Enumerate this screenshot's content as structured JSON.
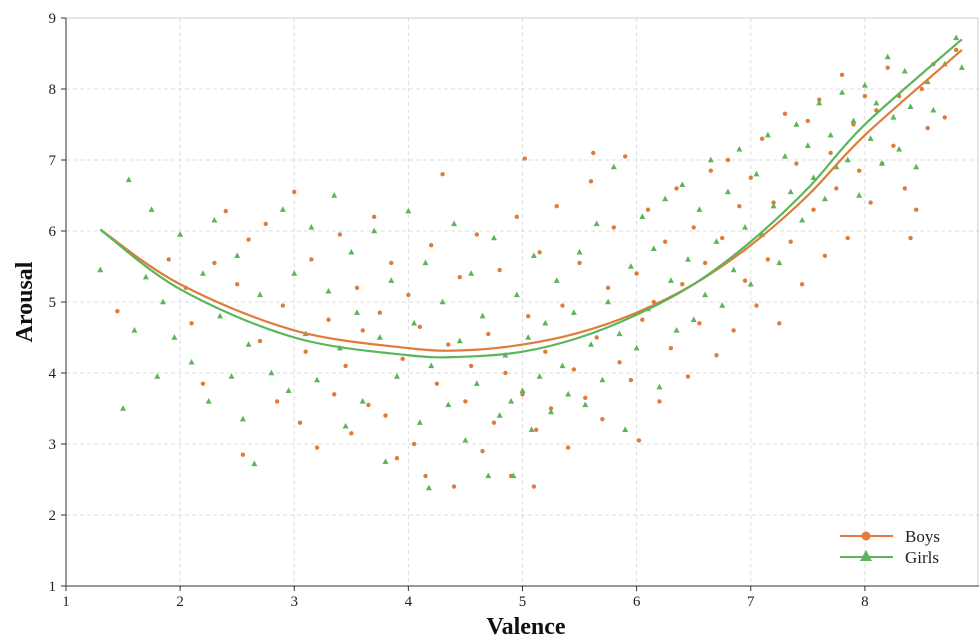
{
  "chart_data": {
    "type": "scatter",
    "xlabel": "Valence",
    "ylabel": "Arousal",
    "xlim": [
      1,
      9
    ],
    "ylim": [
      1,
      9
    ],
    "x_ticks": [
      "1",
      "2",
      "3",
      "4",
      "5",
      "6",
      "7",
      "8"
    ],
    "y_ticks": [
      "1",
      "2",
      "3",
      "4",
      "5",
      "6",
      "7",
      "8",
      "9"
    ],
    "grid": true,
    "legend_position": "bottom-right",
    "series": [
      {
        "name": "Boys",
        "color": "#E07B39",
        "marker": "circle",
        "fit_curve": {
          "x": [
            1.3,
            2,
            3,
            4,
            4.5,
            5,
            5.5,
            6,
            6.5,
            7,
            7.5,
            8,
            8.85
          ],
          "y": [
            6.02,
            5.25,
            4.6,
            4.35,
            4.32,
            4.4,
            4.57,
            4.85,
            5.25,
            5.8,
            6.5,
            7.35,
            8.55
          ]
        },
        "points": [
          [
            1.45,
            4.87
          ],
          [
            1.9,
            5.6
          ],
          [
            2.05,
            5.2
          ],
          [
            2.1,
            4.7
          ],
          [
            2.2,
            3.85
          ],
          [
            2.3,
            5.55
          ],
          [
            2.4,
            6.28
          ],
          [
            2.5,
            5.25
          ],
          [
            2.55,
            2.85
          ],
          [
            2.6,
            5.88
          ],
          [
            2.7,
            4.45
          ],
          [
            2.75,
            6.1
          ],
          [
            2.85,
            3.6
          ],
          [
            2.9,
            4.95
          ],
          [
            3.0,
            6.55
          ],
          [
            3.05,
            3.3
          ],
          [
            3.1,
            4.3
          ],
          [
            3.15,
            5.6
          ],
          [
            3.2,
            2.95
          ],
          [
            3.3,
            4.75
          ],
          [
            3.35,
            3.7
          ],
          [
            3.4,
            5.95
          ],
          [
            3.45,
            4.1
          ],
          [
            3.5,
            3.15
          ],
          [
            3.55,
            5.2
          ],
          [
            3.6,
            4.6
          ],
          [
            3.65,
            3.55
          ],
          [
            3.7,
            6.2
          ],
          [
            3.75,
            4.85
          ],
          [
            3.8,
            3.4
          ],
          [
            3.85,
            5.55
          ],
          [
            3.9,
            2.8
          ],
          [
            3.95,
            4.2
          ],
          [
            4.0,
            5.1
          ],
          [
            4.05,
            3.0
          ],
          [
            4.1,
            4.65
          ],
          [
            4.15,
            2.55
          ],
          [
            4.2,
            5.8
          ],
          [
            4.25,
            3.85
          ],
          [
            4.3,
            6.8
          ],
          [
            4.35,
            4.4
          ],
          [
            4.4,
            2.4
          ],
          [
            4.45,
            5.35
          ],
          [
            4.5,
            3.6
          ],
          [
            4.55,
            4.1
          ],
          [
            4.6,
            5.95
          ],
          [
            4.65,
            2.9
          ],
          [
            4.7,
            4.55
          ],
          [
            4.75,
            3.3
          ],
          [
            4.8,
            5.45
          ],
          [
            4.85,
            4.0
          ],
          [
            4.9,
            2.55
          ],
          [
            4.95,
            6.2
          ],
          [
            5.0,
            3.7
          ],
          [
            5.02,
            7.02
          ],
          [
            5.05,
            4.8
          ],
          [
            5.1,
            2.4
          ],
          [
            5.12,
            3.2
          ],
          [
            5.15,
            5.7
          ],
          [
            5.2,
            4.3
          ],
          [
            5.25,
            3.5
          ],
          [
            5.3,
            6.35
          ],
          [
            5.35,
            4.95
          ],
          [
            5.4,
            2.95
          ],
          [
            5.45,
            4.05
          ],
          [
            5.5,
            5.55
          ],
          [
            5.55,
            3.65
          ],
          [
            5.6,
            6.7
          ],
          [
            5.62,
            7.1
          ],
          [
            5.65,
            4.5
          ],
          [
            5.7,
            3.35
          ],
          [
            5.75,
            5.2
          ],
          [
            5.8,
            6.05
          ],
          [
            5.85,
            4.15
          ],
          [
            5.9,
            7.05
          ],
          [
            5.95,
            3.9
          ],
          [
            6.0,
            5.4
          ],
          [
            6.02,
            3.05
          ],
          [
            6.05,
            4.75
          ],
          [
            6.1,
            6.3
          ],
          [
            6.15,
            5.0
          ],
          [
            6.2,
            3.6
          ],
          [
            6.25,
            5.85
          ],
          [
            6.3,
            4.35
          ],
          [
            6.35,
            6.6
          ],
          [
            6.4,
            5.25
          ],
          [
            6.45,
            3.95
          ],
          [
            6.5,
            6.05
          ],
          [
            6.55,
            4.7
          ],
          [
            6.6,
            5.55
          ],
          [
            6.65,
            6.85
          ],
          [
            6.7,
            4.25
          ],
          [
            6.75,
            5.9
          ],
          [
            6.8,
            7.0
          ],
          [
            6.85,
            4.6
          ],
          [
            6.9,
            6.35
          ],
          [
            6.95,
            5.3
          ],
          [
            7.0,
            6.75
          ],
          [
            7.05,
            4.95
          ],
          [
            7.1,
            7.3
          ],
          [
            7.15,
            5.6
          ],
          [
            7.2,
            6.4
          ],
          [
            7.25,
            4.7
          ],
          [
            7.3,
            7.65
          ],
          [
            7.35,
            5.85
          ],
          [
            7.4,
            6.95
          ],
          [
            7.45,
            5.25
          ],
          [
            7.5,
            7.55
          ],
          [
            7.55,
            6.3
          ],
          [
            7.6,
            7.85
          ],
          [
            7.65,
            5.65
          ],
          [
            7.7,
            7.1
          ],
          [
            7.75,
            6.6
          ],
          [
            7.8,
            8.2
          ],
          [
            7.85,
            5.9
          ],
          [
            7.9,
            7.5
          ],
          [
            7.95,
            6.85
          ],
          [
            8.0,
            7.9
          ],
          [
            8.05,
            6.4
          ],
          [
            8.1,
            7.7
          ],
          [
            8.15,
            6.95
          ],
          [
            8.2,
            8.3
          ],
          [
            8.25,
            7.2
          ],
          [
            8.3,
            7.9
          ],
          [
            8.35,
            6.6
          ],
          [
            8.4,
            5.9
          ],
          [
            8.45,
            6.3
          ],
          [
            8.5,
            8.0
          ],
          [
            8.55,
            7.45
          ],
          [
            8.6,
            8.35
          ],
          [
            8.7,
            7.6
          ],
          [
            8.8,
            8.55
          ]
        ]
      },
      {
        "name": "Girls",
        "color": "#5BB55B",
        "marker": "triangle",
        "fit_curve": {
          "x": [
            1.3,
            2,
            3,
            4,
            4.5,
            5,
            5.5,
            6,
            6.5,
            7,
            7.5,
            8,
            8.85
          ],
          "y": [
            6.02,
            5.18,
            4.5,
            4.25,
            4.23,
            4.3,
            4.5,
            4.82,
            5.25,
            5.85,
            6.6,
            7.5,
            8.7
          ]
        },
        "points": [
          [
            1.3,
            5.45
          ],
          [
            1.5,
            3.5
          ],
          [
            1.55,
            6.72
          ],
          [
            1.6,
            4.6
          ],
          [
            1.7,
            5.35
          ],
          [
            1.75,
            6.3
          ],
          [
            1.8,
            3.95
          ],
          [
            1.85,
            5.0
          ],
          [
            1.95,
            4.5
          ],
          [
            2.0,
            5.95
          ],
          [
            2.1,
            4.15
          ],
          [
            2.2,
            5.4
          ],
          [
            2.25,
            3.6
          ],
          [
            2.3,
            6.15
          ],
          [
            2.35,
            4.8
          ],
          [
            2.45,
            3.95
          ],
          [
            2.5,
            5.65
          ],
          [
            2.55,
            3.35
          ],
          [
            2.6,
            4.4
          ],
          [
            2.65,
            2.72
          ],
          [
            2.7,
            5.1
          ],
          [
            2.8,
            4.0
          ],
          [
            2.9,
            6.3
          ],
          [
            2.95,
            3.75
          ],
          [
            3.0,
            5.4
          ],
          [
            3.1,
            4.55
          ],
          [
            3.15,
            6.05
          ],
          [
            3.2,
            3.9
          ],
          [
            3.3,
            5.15
          ],
          [
            3.35,
            6.5
          ],
          [
            3.4,
            4.35
          ],
          [
            3.45,
            3.25
          ],
          [
            3.5,
            5.7
          ],
          [
            3.55,
            4.85
          ],
          [
            3.6,
            3.6
          ],
          [
            3.7,
            6.0
          ],
          [
            3.75,
            4.5
          ],
          [
            3.8,
            2.75
          ],
          [
            3.85,
            5.3
          ],
          [
            3.9,
            3.95
          ],
          [
            4.0,
            6.28
          ],
          [
            4.05,
            4.7
          ],
          [
            4.1,
            3.3
          ],
          [
            4.15,
            5.55
          ],
          [
            4.18,
            2.38
          ],
          [
            4.2,
            4.1
          ],
          [
            4.3,
            5.0
          ],
          [
            4.35,
            3.55
          ],
          [
            4.4,
            6.1
          ],
          [
            4.45,
            4.45
          ],
          [
            4.5,
            3.05
          ],
          [
            4.55,
            5.4
          ],
          [
            4.6,
            3.85
          ],
          [
            4.65,
            4.8
          ],
          [
            4.7,
            2.55
          ],
          [
            4.75,
            5.9
          ],
          [
            4.8,
            3.4
          ],
          [
            4.85,
            4.25
          ],
          [
            4.9,
            3.6
          ],
          [
            4.92,
            2.55
          ],
          [
            4.95,
            5.1
          ],
          [
            5.0,
            3.75
          ],
          [
            5.05,
            4.5
          ],
          [
            5.08,
            3.2
          ],
          [
            5.1,
            5.65
          ],
          [
            5.15,
            3.95
          ],
          [
            5.2,
            4.7
          ],
          [
            5.25,
            3.45
          ],
          [
            5.3,
            5.3
          ],
          [
            5.35,
            4.1
          ],
          [
            5.4,
            3.7
          ],
          [
            5.45,
            4.85
          ],
          [
            5.5,
            5.7
          ],
          [
            5.55,
            3.55
          ],
          [
            5.6,
            4.4
          ],
          [
            5.65,
            6.1
          ],
          [
            5.7,
            3.9
          ],
          [
            5.75,
            5.0
          ],
          [
            5.8,
            6.9
          ],
          [
            5.85,
            4.55
          ],
          [
            5.9,
            3.2
          ],
          [
            5.95,
            5.5
          ],
          [
            6.0,
            4.35
          ],
          [
            6.05,
            6.2
          ],
          [
            6.1,
            4.9
          ],
          [
            6.15,
            5.75
          ],
          [
            6.2,
            3.8
          ],
          [
            6.25,
            6.45
          ],
          [
            6.3,
            5.3
          ],
          [
            6.35,
            4.6
          ],
          [
            6.4,
            6.65
          ],
          [
            6.45,
            5.6
          ],
          [
            6.5,
            4.75
          ],
          [
            6.55,
            6.3
          ],
          [
            6.6,
            5.1
          ],
          [
            6.65,
            7.0
          ],
          [
            6.7,
            5.85
          ],
          [
            6.75,
            4.95
          ],
          [
            6.8,
            6.55
          ],
          [
            6.85,
            5.45
          ],
          [
            6.9,
            7.15
          ],
          [
            6.95,
            6.05
          ],
          [
            7.0,
            5.25
          ],
          [
            7.05,
            6.8
          ],
          [
            7.1,
            5.95
          ],
          [
            7.15,
            7.35
          ],
          [
            7.2,
            6.35
          ],
          [
            7.25,
            5.55
          ],
          [
            7.3,
            7.05
          ],
          [
            7.35,
            6.55
          ],
          [
            7.4,
            7.5
          ],
          [
            7.45,
            6.15
          ],
          [
            7.5,
            7.2
          ],
          [
            7.55,
            6.75
          ],
          [
            7.6,
            7.8
          ],
          [
            7.65,
            6.45
          ],
          [
            7.7,
            7.35
          ],
          [
            7.75,
            6.9
          ],
          [
            7.8,
            7.95
          ],
          [
            7.85,
            7.0
          ],
          [
            7.9,
            7.55
          ],
          [
            7.95,
            6.5
          ],
          [
            8.0,
            8.05
          ],
          [
            8.05,
            7.3
          ],
          [
            8.1,
            7.8
          ],
          [
            8.15,
            6.95
          ],
          [
            8.2,
            8.45
          ],
          [
            8.25,
            7.6
          ],
          [
            8.3,
            7.15
          ],
          [
            8.35,
            8.25
          ],
          [
            8.4,
            7.75
          ],
          [
            8.45,
            6.9
          ],
          [
            8.55,
            8.1
          ],
          [
            8.6,
            7.7
          ],
          [
            8.7,
            8.35
          ],
          [
            8.8,
            8.72
          ],
          [
            8.85,
            8.3
          ]
        ]
      }
    ]
  }
}
